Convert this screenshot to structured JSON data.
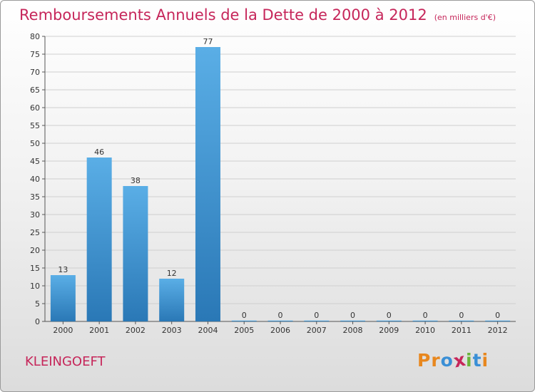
{
  "header": {
    "title": "Remboursements Annuels de la Dette de 2000 à 2012",
    "subtitle": "(en milliers d'€)"
  },
  "footer": {
    "town": "KLEINGOEFT",
    "logo": [
      "P",
      "r",
      "o",
      "x",
      "i",
      "t",
      "i"
    ]
  },
  "colors": {
    "title": "#c6265a",
    "bar_top": "#5aaee6",
    "bar_bottom": "#2a78b6",
    "logo": [
      "#e8871e",
      "#e8871e",
      "#3a8fd6",
      "#c6265a",
      "#6ab43a",
      "#3a8fd6",
      "#e8871e"
    ]
  },
  "chart_data": {
    "type": "bar",
    "categories": [
      "2000",
      "2001",
      "2002",
      "2003",
      "2004",
      "2005",
      "2006",
      "2007",
      "2008",
      "2009",
      "2010",
      "2011",
      "2012"
    ],
    "values": [
      13,
      46,
      38,
      12,
      77,
      0,
      0,
      0,
      0,
      0,
      0,
      0,
      0
    ],
    "data_labels": [
      "13",
      "46",
      "38",
      "12",
      "77",
      "0",
      "0",
      "0",
      "0",
      "0",
      "0",
      "0",
      "0"
    ],
    "yticks": [
      0,
      5,
      10,
      15,
      20,
      25,
      30,
      35,
      40,
      45,
      50,
      55,
      60,
      65,
      70,
      75,
      80
    ],
    "ylim": [
      0,
      80
    ],
    "grid": true,
    "title": "Remboursements Annuels de la Dette de 2000 à 2012",
    "xlabel": "",
    "ylabel": ""
  }
}
